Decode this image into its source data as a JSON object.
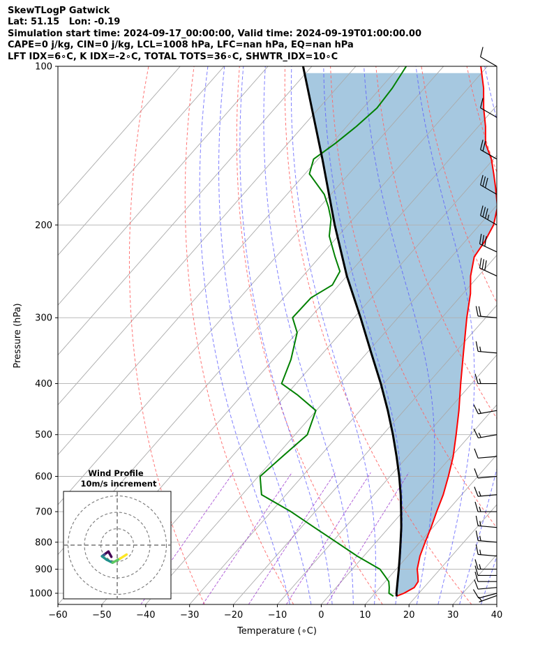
{
  "header": {
    "line1": "SkewTLogP Gatwick",
    "line2": "Lat: 51.15   Lon: -0.19",
    "line3": "Simulation start time: 2024-09-17_00:00:00, Valid time: 2024-09-19T01:00:00.00",
    "line4": "CAPE=0 j/kg, CIN=0 j/kg, LCL=1008 hPa, LFC=nan hPa, EQ=nan hPa",
    "line5": "LFT IDX=6∘C, K IDX=-2∘C, TOTAL TOTS=36∘C, SHWTR_IDX=10∘C"
  },
  "chart_data": {
    "type": "line",
    "subtype": "skew-T log-P diagram",
    "xlabel": "Temperature (∘C)",
    "ylabel": "Pressure (hPa)",
    "x_ticks": [
      -60,
      -50,
      -40,
      -30,
      -20,
      -10,
      0,
      10,
      20,
      30,
      40
    ],
    "x_tick_labels": [
      "−60",
      "−50",
      "−40",
      "−30",
      "−20",
      "−10",
      "0",
      "10",
      "20",
      "30",
      "40"
    ],
    "y_ticks": [
      100,
      200,
      300,
      400,
      500,
      600,
      700,
      800,
      900,
      1000
    ],
    "xlim": [
      -60,
      40
    ],
    "ylim": [
      1050,
      100
    ],
    "y_scale": "log",
    "grid": true,
    "colors": {
      "temperature": "#ff0000",
      "dewpoint": "#008000",
      "parcel": "#000000",
      "shading": "#a6c8e0",
      "dry_adiabat": "#ff6666",
      "moist_adiabat": "#5555ff",
      "mixing_ratio": "#9933cc",
      "isotherm": "#aaaaaa"
    },
    "series": [
      {
        "key": "temperature",
        "points": [
          [
            1013,
            15.5
          ],
          [
            1000,
            16.6
          ],
          [
            975,
            17.8
          ],
          [
            950,
            17.5
          ],
          [
            925,
            16.2
          ],
          [
            900,
            14.8
          ],
          [
            850,
            12.8
          ],
          [
            800,
            11.2
          ],
          [
            750,
            9.6
          ],
          [
            700,
            7.7
          ],
          [
            650,
            5.8
          ],
          [
            600,
            3.3
          ],
          [
            550,
            0.4
          ],
          [
            500,
            -3.3
          ],
          [
            450,
            -7.5
          ],
          [
            400,
            -12.5
          ],
          [
            350,
            -18
          ],
          [
            300,
            -24.3
          ],
          [
            270,
            -28.3
          ],
          [
            250,
            -31.8
          ],
          [
            230,
            -34.8
          ],
          [
            215,
            -35.5
          ],
          [
            200,
            -36.8
          ],
          [
            185,
            -39.5
          ],
          [
            170,
            -43.8
          ],
          [
            160,
            -47
          ],
          [
            150,
            -50.5
          ],
          [
            140,
            -55
          ],
          [
            130,
            -58.4
          ],
          [
            120,
            -62.5
          ],
          [
            110,
            -66.5
          ],
          [
            100,
            -71.5
          ]
        ]
      },
      {
        "key": "dewpoint",
        "points": [
          [
            1013,
            14.8
          ],
          [
            1000,
            13.2
          ],
          [
            975,
            12.1
          ],
          [
            950,
            10.8
          ],
          [
            925,
            8.6
          ],
          [
            900,
            6.3
          ],
          [
            850,
            -1.5
          ],
          [
            800,
            -9
          ],
          [
            750,
            -17
          ],
          [
            700,
            -25.5
          ],
          [
            650,
            -35.6
          ],
          [
            600,
            -39.6
          ],
          [
            550,
            -38.5
          ],
          [
            500,
            -37.2
          ],
          [
            450,
            -40.1
          ],
          [
            420,
            -47.5
          ],
          [
            400,
            -53.3
          ],
          [
            360,
            -56
          ],
          [
            320,
            -60
          ],
          [
            300,
            -64
          ],
          [
            275,
            -63.8
          ],
          [
            260,
            -61.5
          ],
          [
            245,
            -62.5
          ],
          [
            230,
            -66.5
          ],
          [
            210,
            -72
          ],
          [
            195,
            -75
          ],
          [
            185,
            -78
          ],
          [
            175,
            -81.5
          ],
          [
            160,
            -89
          ],
          [
            150,
            -91
          ],
          [
            140,
            -89.2
          ],
          [
            130,
            -87.8
          ],
          [
            120,
            -86.8
          ],
          [
            110,
            -87.3
          ],
          [
            100,
            -88.5
          ]
        ]
      },
      {
        "key": "parcel",
        "points": [
          [
            1013,
            15.5
          ],
          [
            1008,
            15.3
          ],
          [
            1000,
            14.9
          ],
          [
            950,
            12.8
          ],
          [
            900,
            10.6
          ],
          [
            850,
            8.2
          ],
          [
            800,
            5.6
          ],
          [
            750,
            2.8
          ],
          [
            700,
            -0.4
          ],
          [
            650,
            -3.9
          ],
          [
            600,
            -7.9
          ],
          [
            550,
            -12.5
          ],
          [
            500,
            -17.7
          ],
          [
            450,
            -23.7
          ],
          [
            400,
            -30.7
          ],
          [
            350,
            -39
          ],
          [
            300,
            -48.5
          ],
          [
            250,
            -60
          ],
          [
            200,
            -73
          ],
          [
            150,
            -89
          ],
          [
            100,
            -112
          ]
        ]
      }
    ],
    "wind_barbs": {
      "pressures": [
        1010,
        1000,
        975,
        950,
        925,
        900,
        850,
        800,
        750,
        700,
        650,
        600,
        550,
        500,
        450,
        400,
        350,
        300,
        250,
        225,
        200,
        175,
        150,
        125,
        100
      ],
      "speed_ms": [
        3,
        5,
        6,
        6,
        6,
        8,
        8,
        8,
        8,
        8,
        7,
        6,
        6,
        8,
        8,
        8,
        8,
        10,
        16,
        16,
        18,
        16,
        10,
        6,
        6
      ],
      "direction_deg": [
        250,
        255,
        265,
        270,
        270,
        270,
        275,
        275,
        275,
        270,
        265,
        265,
        265,
        260,
        260,
        270,
        275,
        275,
        295,
        295,
        300,
        300,
        300,
        300,
        300
      ]
    },
    "hodograph": {
      "title": "Wind Profile",
      "subtitle": "10m/s increment",
      "ring_increment_ms": 10,
      "colormap": "viridis",
      "u": [
        -1,
        -1.5,
        -2.2,
        -2.6,
        -1.8,
        -0.8,
        0.5,
        1.6
      ],
      "v": [
        -2,
        -1.1,
        -1.6,
        -1.9,
        -2.5,
        -3,
        -2.3,
        -1.6
      ]
    }
  }
}
